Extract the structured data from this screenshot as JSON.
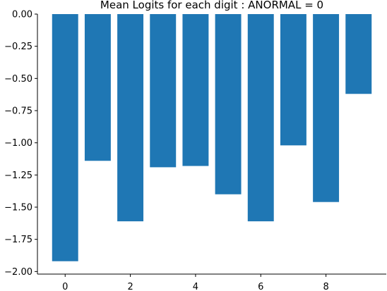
{
  "chart_data": {
    "type": "bar",
    "title": "Mean Logits for each digit : ANORMAL = 0",
    "xlabel": "",
    "ylabel": "",
    "categories": [
      0,
      1,
      2,
      3,
      4,
      5,
      6,
      7,
      8,
      9
    ],
    "values": [
      -1.92,
      -1.14,
      -1.61,
      -1.19,
      -1.18,
      -1.4,
      -1.61,
      -1.02,
      -1.46,
      -0.62
    ],
    "xlim": [
      -0.85,
      9.85
    ],
    "ylim": [
      -2.02,
      0.0
    ],
    "x_ticks": [
      0,
      2,
      4,
      6,
      8
    ],
    "x_tick_labels": [
      "0",
      "2",
      "4",
      "6",
      "8"
    ],
    "y_ticks": [
      0.0,
      -0.25,
      -0.5,
      -0.75,
      -1.0,
      -1.25,
      -1.5,
      -1.75,
      -2.0
    ],
    "y_tick_labels": [
      "0.00",
      "−0.25",
      "−0.50",
      "−0.75",
      "−1.00",
      "−1.25",
      "−1.50",
      "−1.75",
      "−2.00"
    ],
    "bar_color": "#1f77b4",
    "grid": false,
    "legend": "none"
  }
}
